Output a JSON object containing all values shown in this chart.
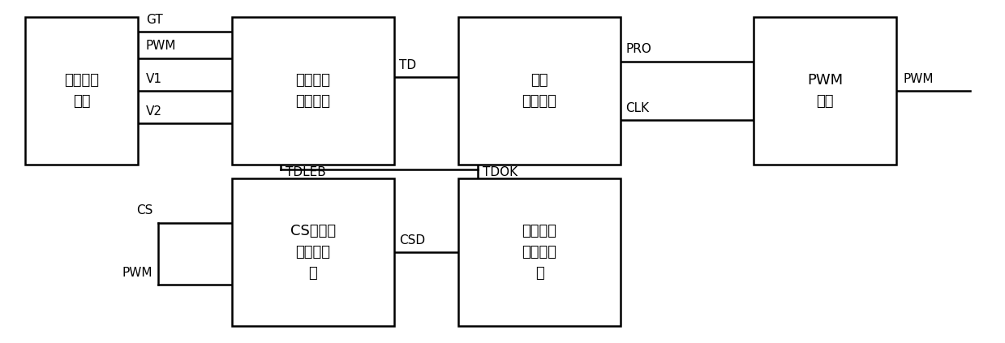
{
  "background": "#ffffff",
  "line_color": "#000000",
  "text_color": "#000000",
  "font_size_box": 13,
  "font_size_label": 11,
  "figsize": [
    12.39,
    4.23
  ],
  "dpi": 100,
  "boxes": {
    "bandgap": [
      0.015,
      0.52,
      0.115,
      0.44
    ],
    "demag": [
      0.225,
      0.52,
      0.165,
      0.44
    ],
    "logic": [
      0.455,
      0.52,
      0.165,
      0.44
    ],
    "pwmlogic": [
      0.755,
      0.52,
      0.145,
      0.44
    ],
    "cspeak": [
      0.225,
      0.04,
      0.165,
      0.44
    ],
    "adaptive": [
      0.455,
      0.04,
      0.165,
      0.44
    ]
  },
  "labels": {
    "bandgap": "带隙基准\n电路",
    "demag": "退磁时间\n检测电路",
    "logic": "逻辑\n判断电路",
    "pwmlogic": "PWM\n逻辑",
    "cspeak": "CS峰值采\n样保持电\n路",
    "adaptive": "自适应退\n磁比较时\n间"
  }
}
